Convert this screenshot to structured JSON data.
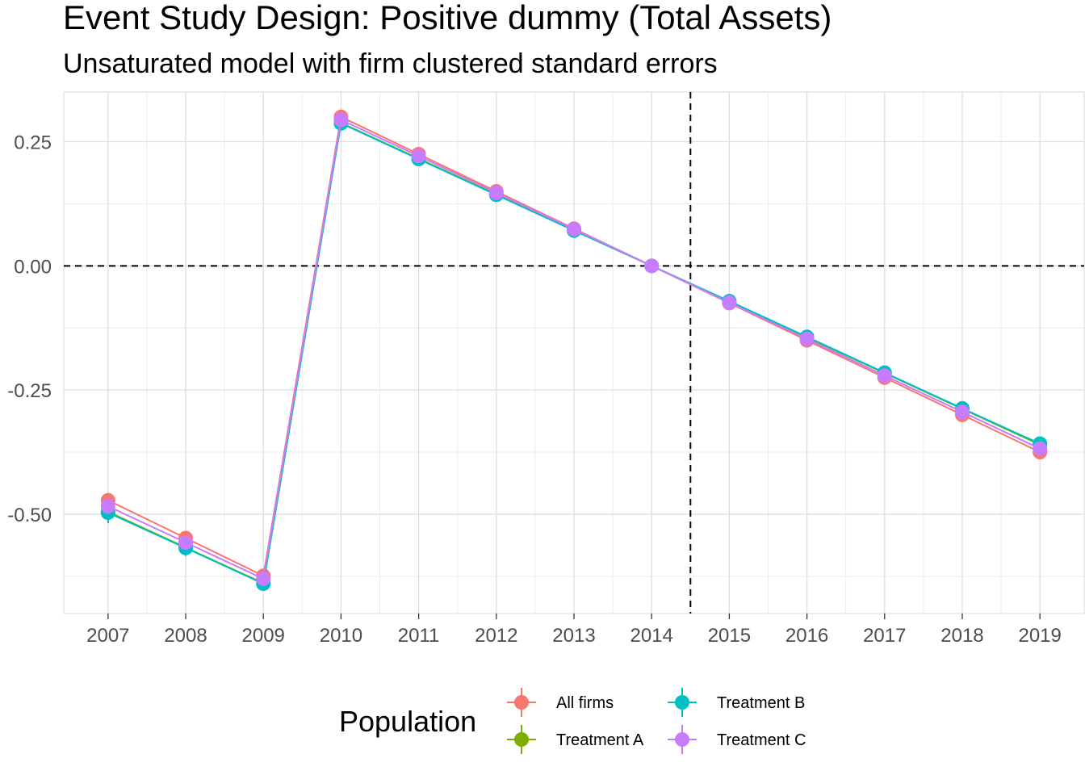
{
  "chart_data": {
    "type": "line",
    "title": "Event Study Design: Positive dummy (Total Assets)",
    "subtitle": "Unsaturated model with firm clustered standard errors",
    "xlabel": "",
    "ylabel": "",
    "x": [
      2007,
      2008,
      2009,
      2010,
      2011,
      2012,
      2013,
      2014,
      2015,
      2016,
      2017,
      2018,
      2019
    ],
    "x_tick_labels": [
      "2007",
      "2008",
      "2009",
      "2010",
      "2011",
      "2012",
      "2013",
      "2014",
      "2015",
      "2016",
      "2017",
      "2018",
      "2019"
    ],
    "y_ticks": [
      0.25,
      0.0,
      -0.25,
      -0.5
    ],
    "y_tick_labels": [
      "0.25",
      "0.00",
      "-0.25",
      "-0.50"
    ],
    "xlim": [
      2006.43,
      2019.57
    ],
    "ylim": [
      -0.7,
      0.35
    ],
    "grid": true,
    "reference_lines": {
      "horizontal": 0,
      "vertical": 2014.5
    },
    "legend": {
      "title": "Population",
      "placement": "bottom"
    },
    "series": [
      {
        "name": "All firms",
        "color": "#F8766D",
        "values": [
          -0.472,
          -0.548,
          -0.624,
          0.3,
          0.225,
          0.15,
          0.075,
          0.0,
          -0.075,
          -0.15,
          -0.225,
          -0.3,
          -0.375
        ],
        "ci_low": [
          -0.487,
          -0.561,
          -0.636,
          0.292,
          0.218,
          0.144,
          0.069,
          0.0,
          -0.081,
          -0.156,
          -0.231,
          -0.307,
          -0.383
        ],
        "ci_high": [
          -0.457,
          -0.535,
          -0.612,
          0.308,
          0.232,
          0.156,
          0.081,
          0.0,
          -0.069,
          -0.144,
          -0.219,
          -0.293,
          -0.367
        ]
      },
      {
        "name": "Treatment A",
        "color": "#7CAE00",
        "values": [
          -0.495,
          -0.567,
          -0.639,
          0.288,
          0.216,
          0.144,
          0.072,
          0.0,
          -0.072,
          -0.144,
          -0.216,
          -0.288,
          -0.36
        ],
        "ci_low": [
          -0.515,
          -0.582,
          -0.652,
          0.28,
          0.209,
          0.138,
          0.066,
          0.0,
          -0.078,
          -0.15,
          -0.222,
          -0.295,
          -0.368
        ],
        "ci_high": [
          -0.475,
          -0.552,
          -0.626,
          0.296,
          0.223,
          0.15,
          0.078,
          0.0,
          -0.066,
          -0.138,
          -0.21,
          -0.281,
          -0.352
        ]
      },
      {
        "name": "Treatment B",
        "color": "#00BFC4",
        "values": [
          -0.497,
          -0.568,
          -0.64,
          0.287,
          0.215,
          0.143,
          0.071,
          0.0,
          -0.071,
          -0.143,
          -0.215,
          -0.287,
          -0.358
        ],
        "ci_low": [
          -0.518,
          -0.584,
          -0.654,
          0.279,
          0.208,
          0.137,
          0.065,
          0.0,
          -0.077,
          -0.149,
          -0.221,
          -0.294,
          -0.366
        ],
        "ci_high": [
          -0.476,
          -0.552,
          -0.626,
          0.295,
          0.222,
          0.149,
          0.077,
          0.0,
          -0.065,
          -0.137,
          -0.209,
          -0.28,
          -0.35
        ]
      },
      {
        "name": "Treatment C",
        "color": "#C77CFF",
        "values": [
          -0.484,
          -0.557,
          -0.63,
          0.294,
          0.221,
          0.147,
          0.074,
          0.0,
          -0.074,
          -0.147,
          -0.221,
          -0.294,
          -0.368
        ],
        "ci_low": [
          -0.5,
          -0.57,
          -0.643,
          0.286,
          0.214,
          0.141,
          0.068,
          0.0,
          -0.08,
          -0.153,
          -0.227,
          -0.301,
          -0.376
        ],
        "ci_high": [
          -0.468,
          -0.544,
          -0.617,
          0.302,
          0.228,
          0.153,
          0.08,
          0.0,
          -0.068,
          -0.141,
          -0.215,
          -0.287,
          -0.36
        ]
      }
    ]
  }
}
